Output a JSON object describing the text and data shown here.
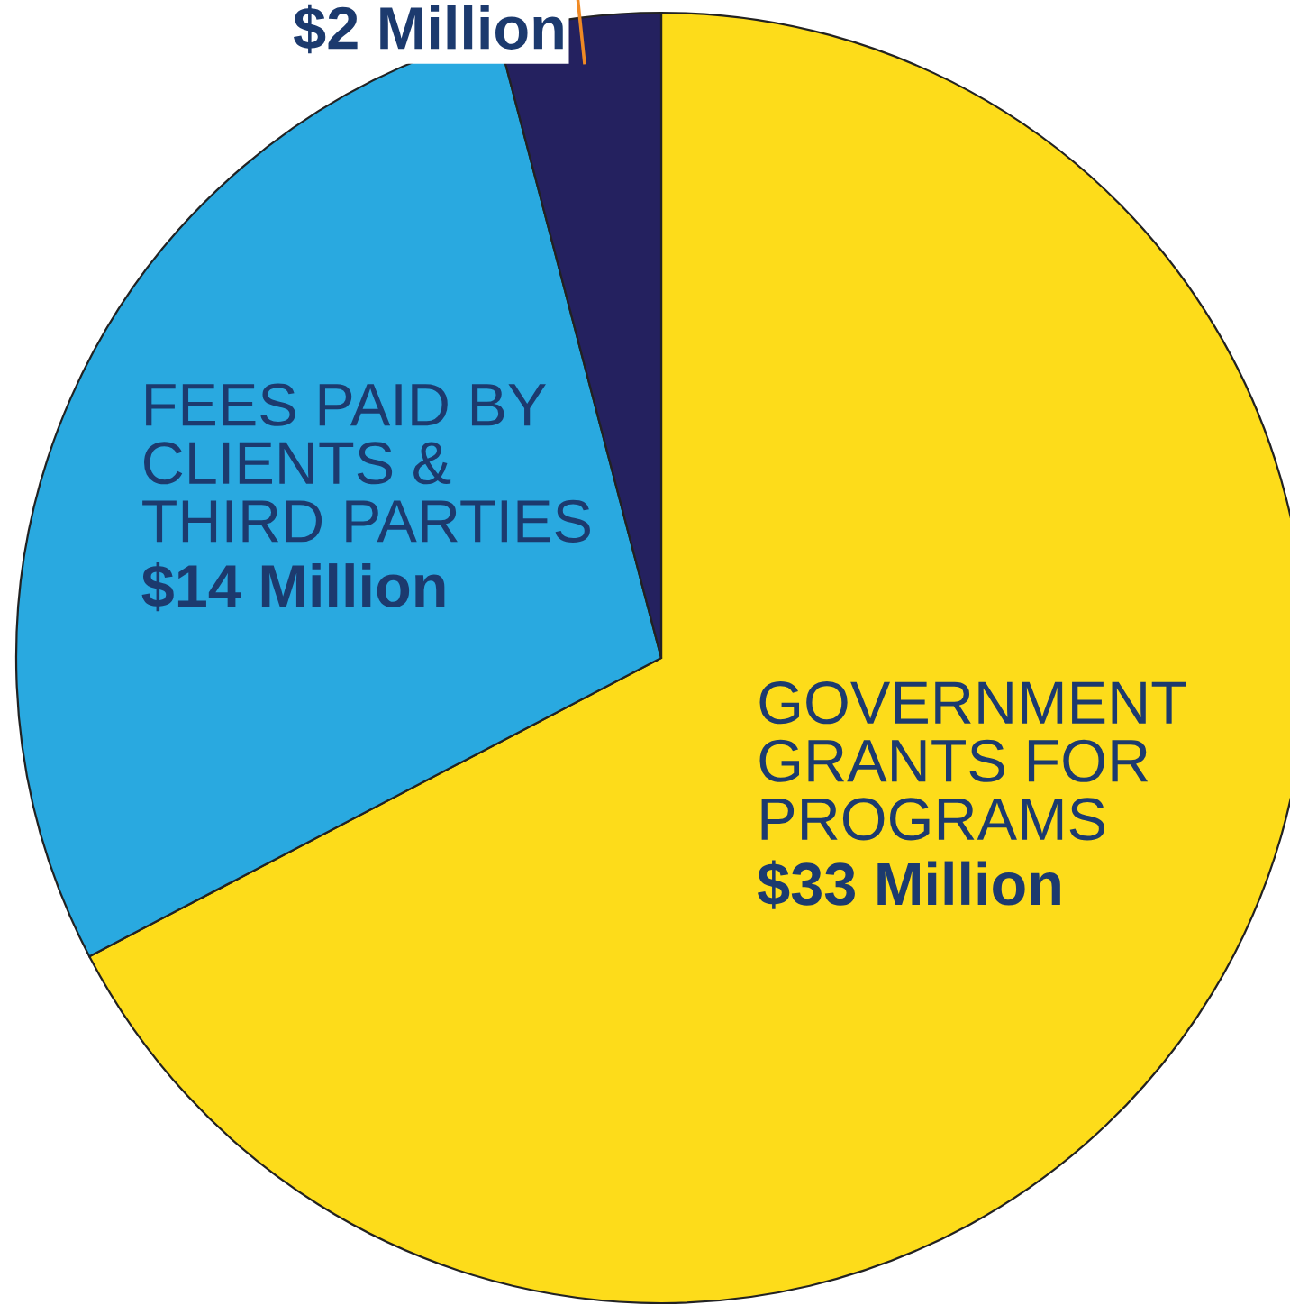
{
  "chart_data": {
    "type": "pie",
    "categories": [
      "GOVERNMENT\nGRANTS FOR\nPROGRAMS",
      "FEES PAID BY\nCLIENTS &\nTHIRD PARTIES",
      null
    ],
    "values": [
      33,
      14,
      2
    ],
    "value_labels": [
      "$33 Million",
      "$14 Million",
      "$2 Million"
    ],
    "colors": [
      "#fddc1a",
      "#29a9e0",
      "#24215f"
    ]
  }
}
